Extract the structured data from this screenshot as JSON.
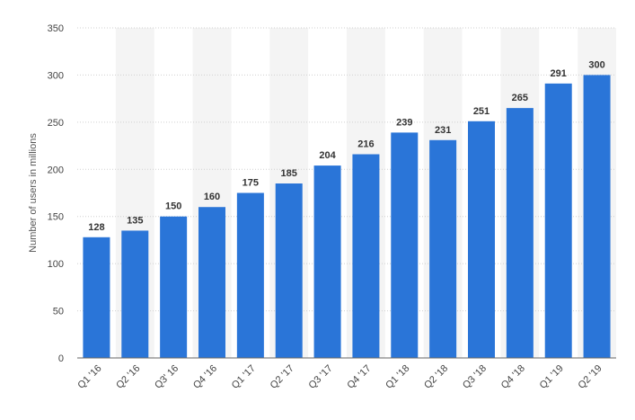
{
  "chart_data": {
    "type": "bar",
    "categories": [
      "Q1 '16",
      "Q2 '16",
      "Q3' 16",
      "Q4 '16",
      "Q1 '17",
      "Q2 '17",
      "Q3 '17",
      "Q4 '17",
      "Q1 '18",
      "Q2 '18",
      "Q3 '18",
      "Q4 '18",
      "Q1 '19",
      "Q2 '19"
    ],
    "values": [
      128,
      135,
      150,
      160,
      175,
      185,
      204,
      216,
      239,
      231,
      251,
      265,
      291,
      300
    ],
    "title": "",
    "xlabel": "",
    "ylabel": "Number of users in millions",
    "ylim": [
      0,
      350
    ],
    "yticks": [
      0,
      50,
      100,
      150,
      200,
      250,
      300,
      350
    ],
    "grid": true,
    "bar_color": "#2a75d8",
    "band_color": "#f4f4f4"
  }
}
